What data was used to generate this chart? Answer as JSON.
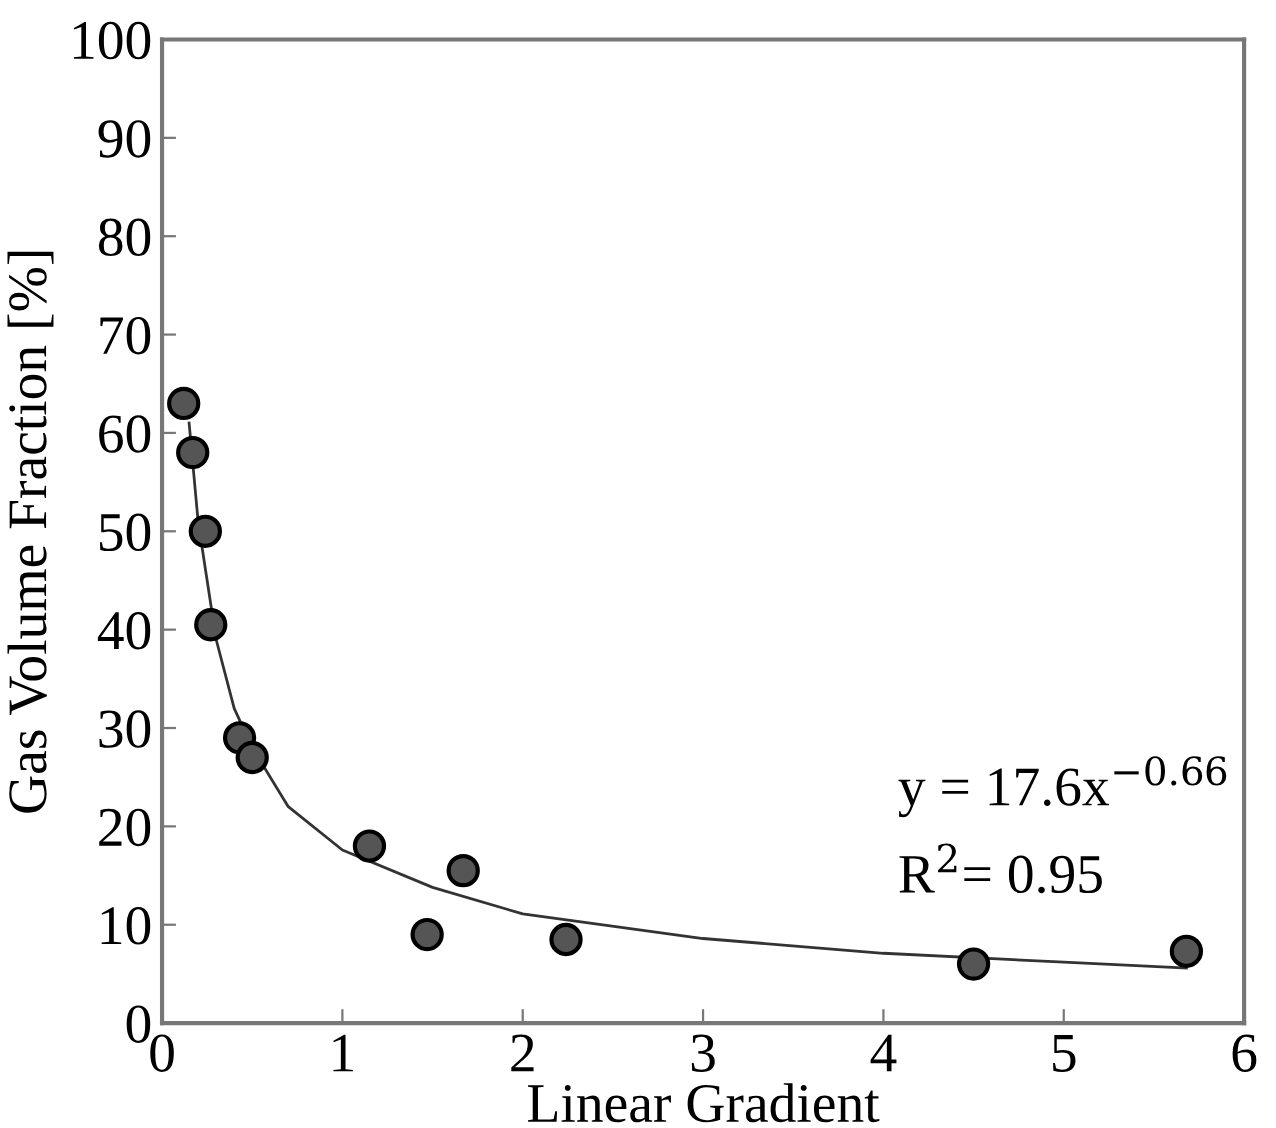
{
  "chart_data": {
    "type": "scatter",
    "xlabel": "Linear Gradient",
    "ylabel": "Gas Volume Fraction [%]",
    "xlim": [
      0,
      6
    ],
    "ylim": [
      0,
      100
    ],
    "xticks": [
      0,
      1,
      2,
      3,
      4,
      5,
      6
    ],
    "yticks": [
      0,
      10,
      20,
      30,
      40,
      50,
      60,
      70,
      80,
      90,
      100
    ],
    "grid": false,
    "legend": false,
    "marker": "circle",
    "series": [
      {
        "color": "#555555",
        "x": [
          0.12,
          0.17,
          0.24,
          0.27,
          0.43,
          0.5,
          1.15,
          1.47,
          1.67,
          2.24,
          4.5,
          5.68
        ],
        "values": [
          63,
          58,
          50,
          40.5,
          29,
          27,
          18,
          9,
          15.5,
          8.5,
          6,
          7.3
        ]
      },
      {
        "type": "line",
        "color": "#333333",
        "marker": "none",
        "line_style": "solid",
        "x": [
          0.15,
          0.2,
          0.3,
          0.4,
          0.5,
          0.7,
          1,
          1.5,
          2,
          3,
          4,
          5,
          5.68
        ],
        "values": [
          61,
          51,
          39,
          32,
          28,
          22,
          17.6,
          13.8,
          11.1,
          8.6,
          7.1,
          6.2,
          5.6
        ]
      }
    ],
    "annotations": [
      "y = 17.6x$^{−0.66}$",
      "R$^{2}$= 0.95"
    ]
  }
}
